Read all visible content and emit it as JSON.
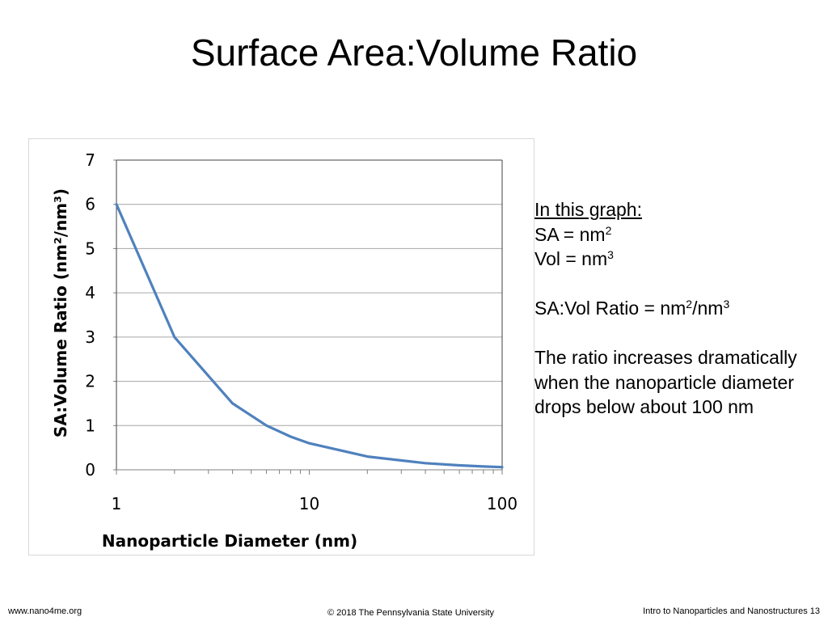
{
  "slide": {
    "title": "Surface Area:Volume Ratio"
  },
  "notes": {
    "heading": "In this graph:",
    "sa_prefix": "SA = nm",
    "sa_exp": "2",
    "vol_prefix": "Vol = nm",
    "vol_exp": "3",
    "ratio_prefix": "SA:Vol Ratio = nm",
    "ratio_exp1": "2",
    "ratio_mid": "/nm",
    "ratio_exp2": "3",
    "paragraph": "The ratio increases dramatically when the nanoparticle diameter drops below about 100 nm"
  },
  "footer": {
    "left": "www.nano4me.org",
    "center": "© 2018 The Pennsylvania State University",
    "right": "Intro to Nanoparticles and Nanostructures 13"
  },
  "chart_data": {
    "type": "line",
    "title": "",
    "xlabel": "Nanoparticle Diameter (nm)",
    "ylabel": "SA:Volume Ratio (nm²/nm³)",
    "xscale": "log",
    "xlim": [
      1,
      100
    ],
    "ylim": [
      0,
      7
    ],
    "x_tick_labels": [
      "1",
      "10",
      "100"
    ],
    "y_tick_labels": [
      "0",
      "1",
      "2",
      "3",
      "4",
      "5",
      "6",
      "7"
    ],
    "grid": "horizontal",
    "legend": "none",
    "colors": {
      "line": "#4f81bd",
      "grid": "#a6a6a6",
      "axis": "#808080"
    },
    "series": [
      {
        "x": [
          1,
          2,
          4,
          6,
          8,
          10,
          20,
          40,
          60,
          80,
          100
        ],
        "y": [
          6,
          3,
          1.5,
          1,
          0.75,
          0.6,
          0.3,
          0.15,
          0.1,
          0.075,
          0.06
        ]
      }
    ]
  }
}
